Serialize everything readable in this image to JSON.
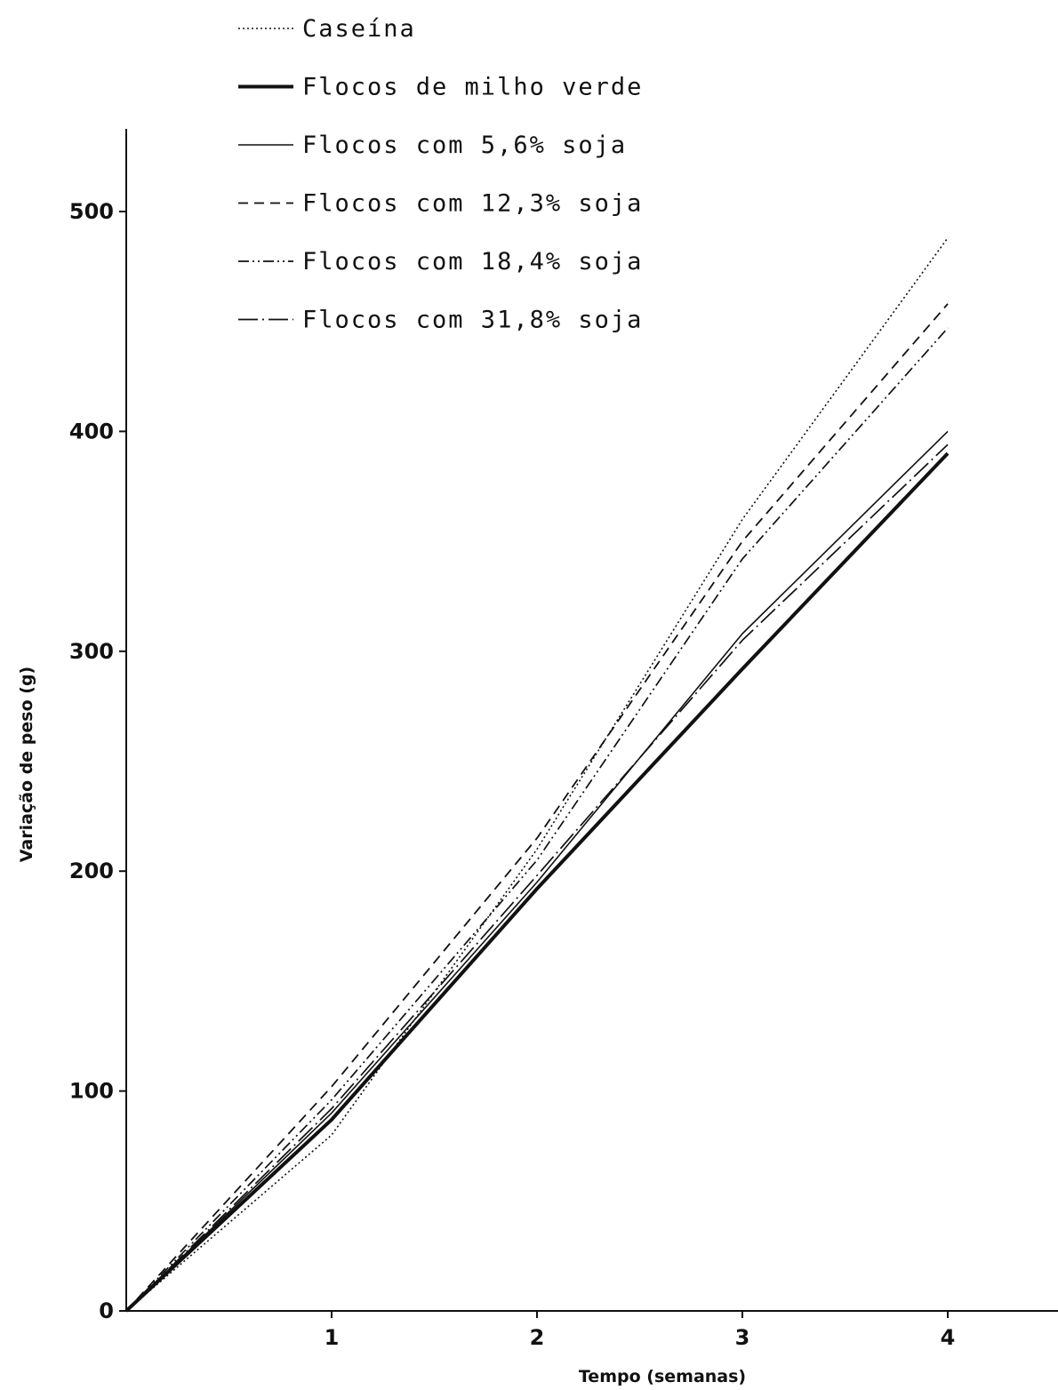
{
  "chart_data": {
    "type": "line",
    "xlabel": "Tempo (semanas)",
    "ylabel": "Variação de peso (g)",
    "x": [
      0,
      1,
      2,
      3,
      4
    ],
    "xlim": [
      0,
      4.5
    ],
    "ylim": [
      0,
      500
    ],
    "xticks": [
      "1",
      "2",
      "3",
      "4"
    ],
    "yticks": [
      "0",
      "100",
      "200",
      "300",
      "400",
      "500"
    ],
    "grid": false,
    "legend_position": "top",
    "series": [
      {
        "name": "Caseína",
        "style": "dotted",
        "values": [
          0,
          80,
          210,
          360,
          488
        ]
      },
      {
        "name": "Flocos de milho verde",
        "style": "thick-solid",
        "values": [
          0,
          87,
          192,
          292,
          390
        ]
      },
      {
        "name": "Flocos com 5,6% soja",
        "style": "solid",
        "values": [
          0,
          90,
          195,
          308,
          400
        ]
      },
      {
        "name": "Flocos com 12,3% soja",
        "style": "dashed",
        "values": [
          0,
          102,
          215,
          350,
          458
        ]
      },
      {
        "name": "Flocos com 18,4% soja",
        "style": "dash-dot-dot",
        "values": [
          0,
          96,
          205,
          342,
          447
        ]
      },
      {
        "name": "Flocos com 31,8% soja",
        "style": "dot-dash-long",
        "values": [
          0,
          92,
          198,
          305,
          394
        ]
      }
    ]
  }
}
